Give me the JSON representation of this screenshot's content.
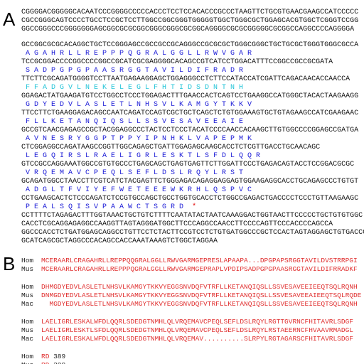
{
  "panel_a": {
    "label": "A",
    "header_dna": [
      "CGGGGACGGGGGCACAATCCCGGGGCCCCCACCCTCCTCCACACCCGCCCTAAGTTCTGCGTGAACGAAGCCATCCCCC",
      "CGCCGGGCAGTCCCCTGCCTCCGCTCCTTGGCCGGCGGGTGGGGGTGGCTGGGCGCTGGAGCACGTGGCTCGGGTCCGG",
      "GGCCGGGCCCGGGGGGGAGCGGCGCGCGGCGGGCGGGCGCGGCAGGGGCGCGCGGGGGCGCGGCCAGGCCCCAGGGGA"
    ],
    "pairs": [
      {
        "dna": "GCCGGCGCGCACAGGCTGCTCCGGGAGCCGCCGCCGCAGGGCCGCGCGCTGGGCGGGCTGCTGCGCTGGGTGGGCGCCA",
        "protein": "A G A H R L L R E P P P Q G R A L G G L L R W V G A R"
      },
      {
        "dna": "TCCGCGGACCCCGGCCCCGGCCGCATCGCGAGGGGCACAGCCGTCATCCTGGACATTTCCGGCCGCCGCGATA",
        "protein": "S A D P G P G P A A S R G G T A V I L D I F R A D R"
      },
      {
        "dna": "TTCTTCGCAGATGGGGTCCTTAATGAGAAGGAGCTGGAGGGCCTCTTCCATACCATCGATTCAGACAACACCAACCA",
        "protein": "F F A D G V L N E K E L E G L F H T I D S D N T N H"
      },
      {
        "dna": "GGAGACTATGAAGATGTCCTGGCCTCCCTGGAGACTTTGAACCACTCAGTCCTGAAGGCCATGGGCTACACTAAGAAGG",
        "protein": "G D Y E D V L A S L E T L N H S V L K A M G Y T K K V"
      },
      {
        "dna": "TTCCTTCTGAAGGAGACAGCCAATCAGATCCAGTCGCTGCTCAGCTCTGTGGAAAGTGCTGTAGAAGCCATCGAAGAAC",
        "protein": "F L L K E T A N Q I Q S L L S S V E S A V E E A I E"
      },
      {
        "dna": "GCCGTCAACGAGAGCCGCTACGGAGGCCCTACTCCTCCCTACATCCCCAACCACAAGCTTGTGGCCCCGGAGCCGATGA",
        "protein": "A V N E S R Y G G P T P P Y I P N H K L V A P E P M K"
      },
      {
        "dna": "CTCGGAGGCCAGATAAGCCGGTTGGCAGAGCTGATTGGAGAGCAAGCACCTCTCGTTGACCTGCAACAGC",
        "protein": "L E G Q I R S L R A E L I G R L E S K T L S F D L Q Q R"
      },
      {
        "dna": "GTCCGCCAGGAAATGGCCGTGTGCCCTGAGCAGCTGAGTGAGTTCTTGGATTCCCTGAGACAGTACCTCCGGACGCGC",
        "protein": "V R Q E M A V C P E Q L S E F L D S L R Q Y L R S T"
      },
      {
        "dna": "GCAGATGGCCTAACCTTCGTCATCTACGAGTTCTGGGAGACAGAGGAGGAGTGGAAGAGGCACCTGCAGAGCCCTGTGT",
        "protein": "A D G L T F V I Y E F W E T E E E W K R H L Q S P V C"
      },
      {
        "dna": "CCTGAAGCACTCTCCCAGATCTCCGTGCCAGCTGCCTGGTGCACCTCTGGCCGAGACTGACCCCTCCCTGTTAAGAAGC",
        "protein": "P E A L S Q I S V P A A W C T S G R D"
      }
    ],
    "stop": "*",
    "tail_dna": [
      "CCTTTTCTAGAGACTTTGGTAAACTGCTGTCTTTTCAATATACTAATCAAAGGACTGGTAACTTCCCCCTGCTGTGTGGC",
      "CACCTCGCAGGAGAGGCCAAGGTTAGTAGGGATGGCTTCCCAGGCCAACCTTCCCCAGTTCCCACCCCAGCCA",
      "GGCCCACCTCTGATGGAGCAGGCCTGTTCCTCTACTTCCGTCCTCTGTGATGGCCCGCTCCACTAGTAGGAGCTGTGACCC",
      "GCATCAGCGCTAGGCCCACAGCCACCAAATAAAGTCTGGCTAGGAA"
    ]
  },
  "panel_b": {
    "label": "B",
    "groups": [
      [
        {
          "species": "Hom",
          "sequence": "MCERAARLCRAGAHRLLREPPQQGRALGGLLRWVGARMGEPRESLAPAAPA...DPGPAPSRGGTAVILDVSTRRPGI"
        },
        {
          "species": "Mus",
          "sequence": "MCERAARLCRAGAHRLLREPPPQGRALGGLLRWVGARMGEPRAPLVPDIPSADPGPGPAASRGGTAVILDIFRRADKF"
        }
      ],
      [
        {
          "species": "Hom",
          "sequence": "DHMGDYEDVLASLETLNHSVLKAMGYTKKVYEGGSNVDQFVTRFLLKETANQIQSLLSSVESAVEEIEEQTSQLRQNH"
        },
        {
          "species": "Mus",
          "sequence": "DNMGDYEDVLASLETLNHSVLKAMGYTKKVYEGGSNVDQFVTRFLLKETANQIQSLLSSVESAVEEAIEEQTSQLRQDE"
        },
        {
          "species": "Mac",
          "sequence": "  MGDYEDVLASLETLNHSVLKAMGYTKKVYEGGSNVDQFVTRFLLKETANQIQSLLSSVESAVEEIEEQTSQLRQNH"
        }
      ],
      [
        {
          "species": "Hom",
          "sequence": "LAELIGRLESKALWFDLQQRLSDEDGTNMHLQLVRQEMAVCPEQLSEFLDSLRQYLRGTTGVRNCFHITAVRLSDGF"
        },
        {
          "species": "Mus",
          "sequence": "LAELIGRLESKTLSFDLQQRLSDEDGTNMHLQLVRQEMAVCPEQLSEFLDSLRQYLRSTAEERNCFHVAAVRMADGL"
        },
        {
          "species": "Mac",
          "sequence": "LAELIGRLESKALWFDLQQRLSDEDGTNMHLQLVRQEMAV..........SLRPYLRGTAGARSCFHITAVRLSDGF"
        }
      ],
      [
        {
          "species": "Hom",
          "sequence": "RD",
          "length": "389"
        },
        {
          "species": "Mus",
          "sequence": "RD",
          "length": "389"
        }
      ]
    ]
  }
}
